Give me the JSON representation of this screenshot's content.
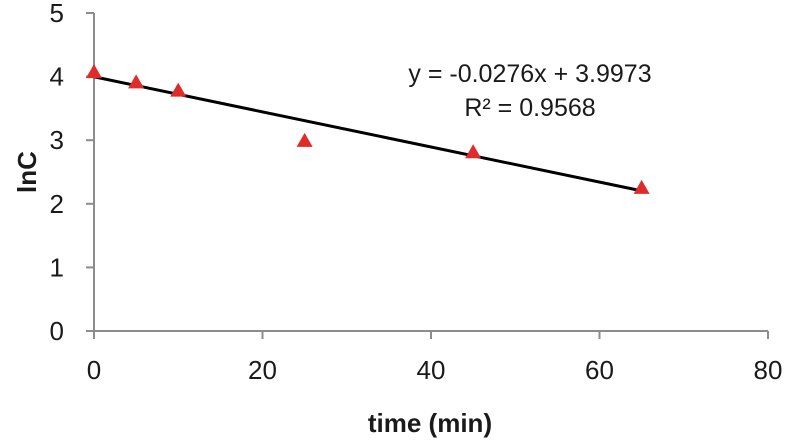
{
  "chart_data": {
    "type": "scatter",
    "title": "",
    "xlabel": "time (min)",
    "ylabel": "lnC",
    "xlim": [
      0,
      80
    ],
    "ylim": [
      0,
      5
    ],
    "x_ticks": [
      0,
      20,
      40,
      60,
      80
    ],
    "y_ticks": [
      0,
      1,
      2,
      3,
      4,
      5
    ],
    "grid": false,
    "legend": "none",
    "series": [
      {
        "marker": "triangle",
        "color": "#e02b2b",
        "points": [
          {
            "x": 0,
            "y": 4.07
          },
          {
            "x": 5,
            "y": 3.91
          },
          {
            "x": 10,
            "y": 3.78
          },
          {
            "x": 25,
            "y": 2.99
          },
          {
            "x": 45,
            "y": 2.81
          },
          {
            "x": 65,
            "y": 2.25
          }
        ]
      }
    ],
    "trendline": {
      "type": "linear",
      "slope": -0.0276,
      "intercept": 3.9973,
      "x_range": [
        0,
        65
      ],
      "color": "#000000",
      "equation_label": "y = -0.0276x + 3.9973",
      "r2_label": "R² = 0.9568"
    }
  }
}
